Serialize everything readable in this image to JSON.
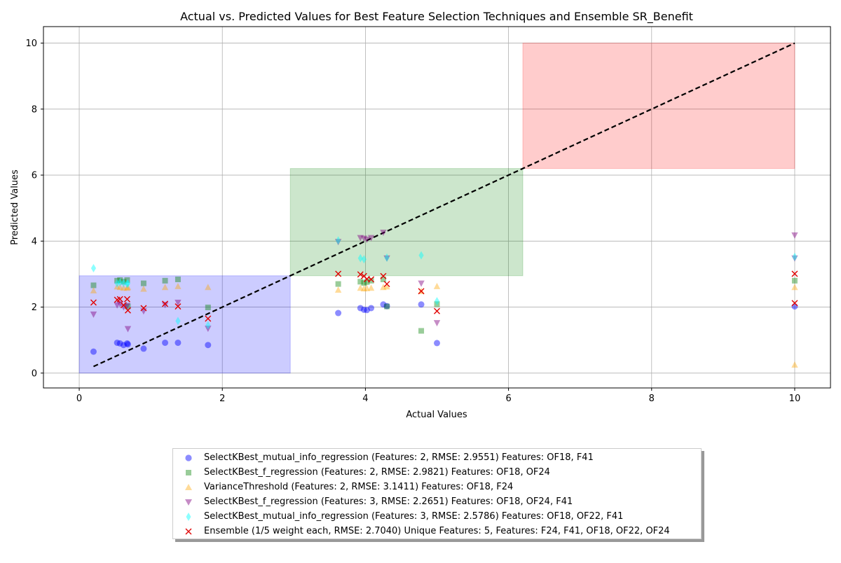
{
  "chart_data": {
    "type": "scatter",
    "title": "Actual vs. Predicted Values for Best Feature Selection Techniques and Ensemble SR_Benefit",
    "xlabel": "Actual Values",
    "ylabel": "Predicted Values",
    "xlim": [
      -0.5,
      10.5
    ],
    "ylim": [
      -0.45,
      10.5
    ],
    "xticks": [
      "0",
      "2",
      "4",
      "6",
      "8",
      "10"
    ],
    "yticks": [
      "0",
      "2",
      "4",
      "6",
      "8",
      "10"
    ],
    "grid": true,
    "legend_position": "bottom-center",
    "reference_line": {
      "from": [
        0.2,
        0.2
      ],
      "to": [
        10,
        10
      ],
      "style": "dashed",
      "color": "#000000"
    },
    "regions": [
      {
        "x": [
          0,
          2.95
        ],
        "y": [
          0,
          2.95
        ],
        "color": "#0000ff",
        "opacity": 0.2
      },
      {
        "x": [
          2.95,
          6.2
        ],
        "y": [
          2.95,
          6.2
        ],
        "color": "#008000",
        "opacity": 0.2
      },
      {
        "x": [
          6.2,
          10
        ],
        "y": [
          6.2,
          10
        ],
        "color": "#ff0000",
        "opacity": 0.2
      }
    ],
    "series": [
      {
        "name": "SelectKBest_mutual_info_regression (Features: 2, RMSE: 2.9551) Features: OF18, F41",
        "marker": "circle",
        "color": "#0000ff",
        "opacity": 0.45,
        "points": [
          [
            0.2,
            0.65
          ],
          [
            0.53,
            0.92
          ],
          [
            0.57,
            0.9
          ],
          [
            0.62,
            0.85
          ],
          [
            0.67,
            0.9
          ],
          [
            0.68,
            0.87
          ],
          [
            0.9,
            0.74
          ],
          [
            1.2,
            0.92
          ],
          [
            1.38,
            0.92
          ],
          [
            1.8,
            0.85
          ],
          [
            3.62,
            1.82
          ],
          [
            3.93,
            1.97
          ],
          [
            3.98,
            1.92
          ],
          [
            4.02,
            1.91
          ],
          [
            4.08,
            1.97
          ],
          [
            4.25,
            2.08
          ],
          [
            4.3,
            2.03
          ],
          [
            4.78,
            2.08
          ],
          [
            5.0,
            0.91
          ],
          [
            10,
            2.02
          ]
        ]
      },
      {
        "name": "SelectKBest_f_regression (Features: 2, RMSE: 2.9821) Features: OF18, OF24",
        "marker": "square",
        "color": "#008000",
        "opacity": 0.4,
        "points": [
          [
            0.2,
            2.66
          ],
          [
            0.53,
            2.8
          ],
          [
            0.57,
            2.82
          ],
          [
            0.62,
            2.77
          ],
          [
            0.67,
            2.82
          ],
          [
            0.68,
            2.02
          ],
          [
            0.9,
            2.72
          ],
          [
            1.2,
            2.8
          ],
          [
            1.38,
            2.84
          ],
          [
            1.8,
            1.99
          ],
          [
            3.62,
            2.7
          ],
          [
            3.93,
            2.77
          ],
          [
            3.98,
            2.73
          ],
          [
            4.02,
            2.76
          ],
          [
            4.08,
            2.8
          ],
          [
            4.25,
            2.84
          ],
          [
            4.3,
            2.02
          ],
          [
            4.78,
            1.28
          ],
          [
            5.0,
            2.09
          ],
          [
            10,
            2.8
          ]
        ]
      },
      {
        "name": "VarianceThreshold (Features: 2, RMSE: 3.1411) Features: OF18, F24",
        "marker": "triangle-up",
        "color": "#ffa500",
        "opacity": 0.4,
        "points": [
          [
            0.2,
            2.5
          ],
          [
            0.53,
            2.62
          ],
          [
            0.57,
            2.6
          ],
          [
            0.62,
            2.58
          ],
          [
            0.67,
            2.58
          ],
          [
            0.68,
            2.6
          ],
          [
            0.9,
            2.55
          ],
          [
            1.2,
            2.6
          ],
          [
            1.38,
            2.63
          ],
          [
            1.8,
            2.6
          ],
          [
            3.62,
            2.52
          ],
          [
            3.93,
            2.58
          ],
          [
            3.98,
            2.56
          ],
          [
            4.02,
            2.57
          ],
          [
            4.08,
            2.58
          ],
          [
            4.25,
            2.6
          ],
          [
            4.3,
            2.62
          ],
          [
            4.78,
            2.48
          ],
          [
            5.0,
            2.63
          ],
          [
            10,
            2.6
          ],
          [
            10,
            0.25
          ]
        ]
      },
      {
        "name": "SelectKBest_f_regression (Features: 3, RMSE: 2.2651) Features: OF18, OF24, F41",
        "marker": "triangle-down",
        "color": "#800080",
        "opacity": 0.45,
        "points": [
          [
            0.2,
            1.78
          ],
          [
            0.53,
            2.06
          ],
          [
            0.57,
            2.1
          ],
          [
            0.62,
            2.0
          ],
          [
            0.67,
            2.04
          ],
          [
            0.68,
            1.34
          ],
          [
            0.9,
            1.88
          ],
          [
            1.2,
            2.07
          ],
          [
            1.38,
            2.14
          ],
          [
            1.8,
            1.35
          ],
          [
            3.62,
            3.98
          ],
          [
            3.93,
            4.1
          ],
          [
            3.98,
            4.08
          ],
          [
            4.02,
            4.05
          ],
          [
            4.08,
            4.1
          ],
          [
            4.25,
            4.26
          ],
          [
            4.3,
            3.48
          ],
          [
            4.78,
            2.72
          ],
          [
            5.0,
            1.52
          ],
          [
            10,
            4.18
          ],
          [
            10,
            3.48
          ]
        ]
      },
      {
        "name": "SelectKBest_mutual_info_regression (Features: 3, RMSE: 2.5786) Features: OF18, OF22, F41",
        "marker": "diamond",
        "color": "#00ffff",
        "opacity": 0.45,
        "points": [
          [
            0.2,
            3.18
          ],
          [
            0.53,
            2.72
          ],
          [
            0.57,
            2.75
          ],
          [
            0.62,
            2.73
          ],
          [
            0.67,
            2.7
          ],
          [
            0.68,
            2.72
          ],
          [
            1.38,
            1.58
          ],
          [
            1.8,
            1.45
          ],
          [
            3.62,
            4.02
          ],
          [
            3.93,
            3.48
          ],
          [
            3.98,
            3.45
          ],
          [
            4.3,
            3.5
          ],
          [
            4.78,
            3.57
          ],
          [
            5.0,
            2.18
          ],
          [
            10,
            3.52
          ]
        ]
      },
      {
        "name": "Ensemble (1/5 weight each, RMSE: 2.7040) Unique Features: 5, Features: F24, F41, OF18, OF22, OF24",
        "marker": "x",
        "color": "#e00000",
        "opacity": 1,
        "points": [
          [
            0.2,
            2.14
          ],
          [
            0.53,
            2.22
          ],
          [
            0.57,
            2.24
          ],
          [
            0.62,
            2.06
          ],
          [
            0.67,
            2.24
          ],
          [
            0.68,
            1.9
          ],
          [
            0.9,
            1.97
          ],
          [
            1.2,
            2.1
          ],
          [
            1.38,
            2.02
          ],
          [
            1.8,
            1.65
          ],
          [
            3.62,
            3.01
          ],
          [
            3.93,
            2.99
          ],
          [
            3.98,
            2.94
          ],
          [
            4.02,
            2.85
          ],
          [
            4.08,
            2.84
          ],
          [
            4.25,
            2.94
          ],
          [
            4.3,
            2.7
          ],
          [
            4.78,
            2.48
          ],
          [
            5.0,
            1.88
          ],
          [
            10,
            3.01
          ],
          [
            10,
            2.12
          ]
        ]
      }
    ]
  }
}
